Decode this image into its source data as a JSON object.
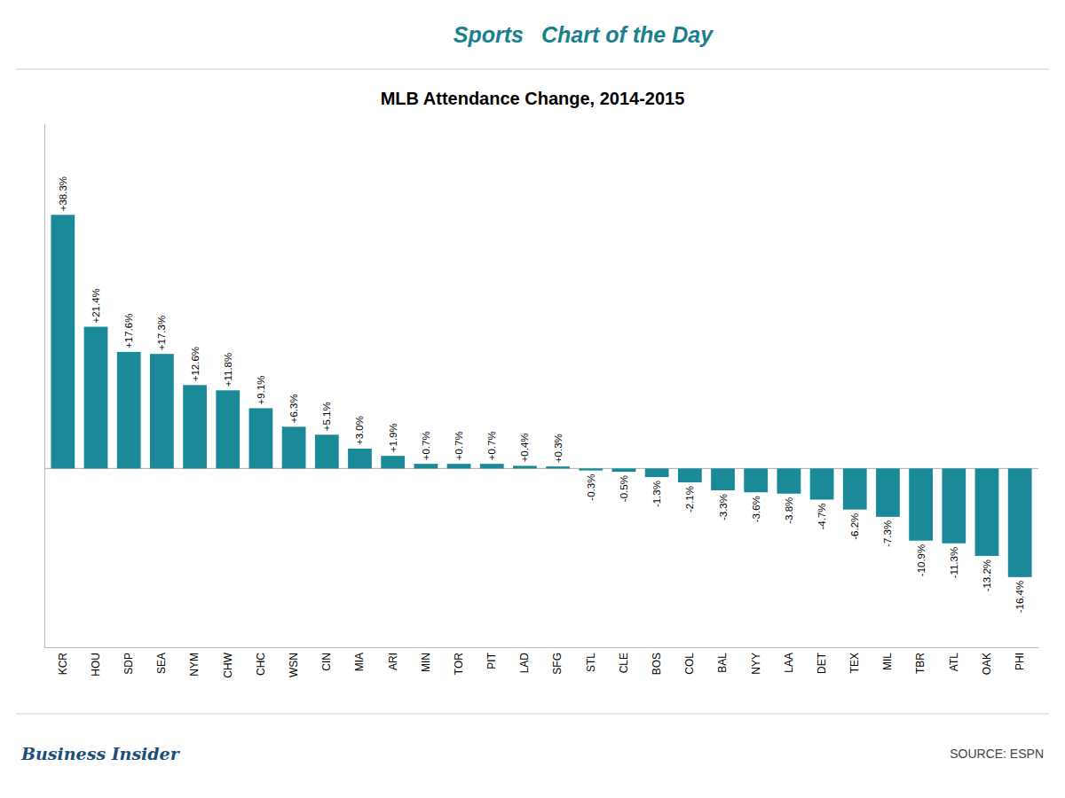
{
  "chart_data": {
    "type": "bar",
    "title": "MLB Attendance Change, 2014-2015",
    "annotations": [
      "Sports",
      "Chart of the Day",
      "Business Insider",
      "SOURCE: ESPN"
    ],
    "categories": [
      "KCR",
      "HOU",
      "SDP",
      "SEA",
      "NYM",
      "CHW",
      "CHC",
      "WSN",
      "CIN",
      "MIA",
      "ARI",
      "MIN",
      "TOR",
      "PIT",
      "LAD",
      "SFG",
      "STL",
      "CLE",
      "BOS",
      "COL",
      "BAL",
      "NYY",
      "LAA",
      "DET",
      "TEX",
      "MIL",
      "TBR",
      "ATL",
      "OAK",
      "PHI"
    ],
    "values": [
      38.3,
      21.4,
      17.6,
      17.3,
      12.6,
      11.8,
      9.1,
      6.3,
      5.1,
      3.0,
      1.9,
      0.7,
      0.7,
      0.7,
      0.4,
      0.3,
      -0.3,
      -0.5,
      -1.3,
      -2.1,
      -3.3,
      -3.6,
      -3.8,
      -4.7,
      -6.2,
      -7.3,
      -10.9,
      -11.3,
      -13.2,
      -16.4
    ],
    "value_labels": [
      "+38.3%",
      "+21.4%",
      "+17.6%",
      "+17.3%",
      "+12.6%",
      "+11.8%",
      "+9.1%",
      "+6.3%",
      "+5.1%",
      "+3.0%",
      "+1.9%",
      "+0.7%",
      "+0.7%",
      "+0.7%",
      "+0.4%",
      "+0.3%",
      "-0.3%",
      "-0.5%",
      "-1.3%",
      "-2.1%",
      "-3.3%",
      "-3.6%",
      "-3.8%",
      "-4.7%",
      "-6.2%",
      "-7.3%",
      "-10.9%",
      "-11.3%",
      "-13.2%",
      "-16.4%"
    ],
    "data_labels": true,
    "color": "#1a8a99",
    "ylim": [
      -27,
      52
    ],
    "tick_labels": "x",
    "grid": false
  }
}
